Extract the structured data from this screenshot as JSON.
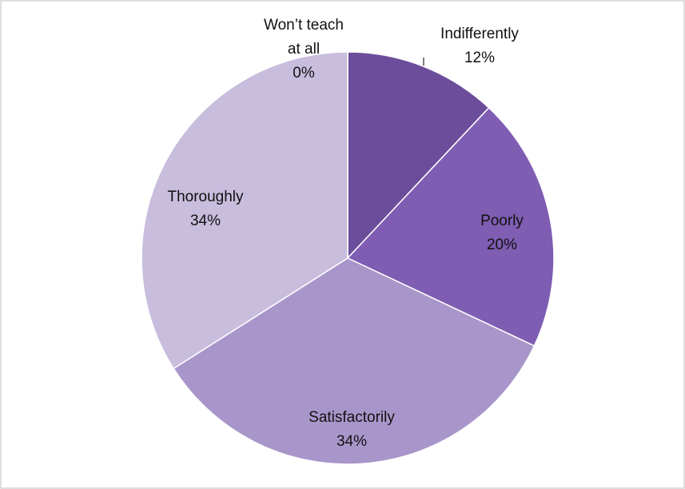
{
  "chart_data": {
    "type": "pie",
    "categories": [
      "Indifferently",
      "Poorly",
      "Satisfactorily",
      "Thoroughly",
      "Won’t teach at all"
    ],
    "values": [
      12,
      20,
      34,
      34,
      0
    ],
    "value_labels": [
      "12%",
      "20%",
      "34%",
      "34%",
      "0%"
    ],
    "colors": [
      "#6c4d9b",
      "#7e5db2",
      "#a896ca",
      "#c8bddd",
      "#d9d1e8"
    ]
  }
}
